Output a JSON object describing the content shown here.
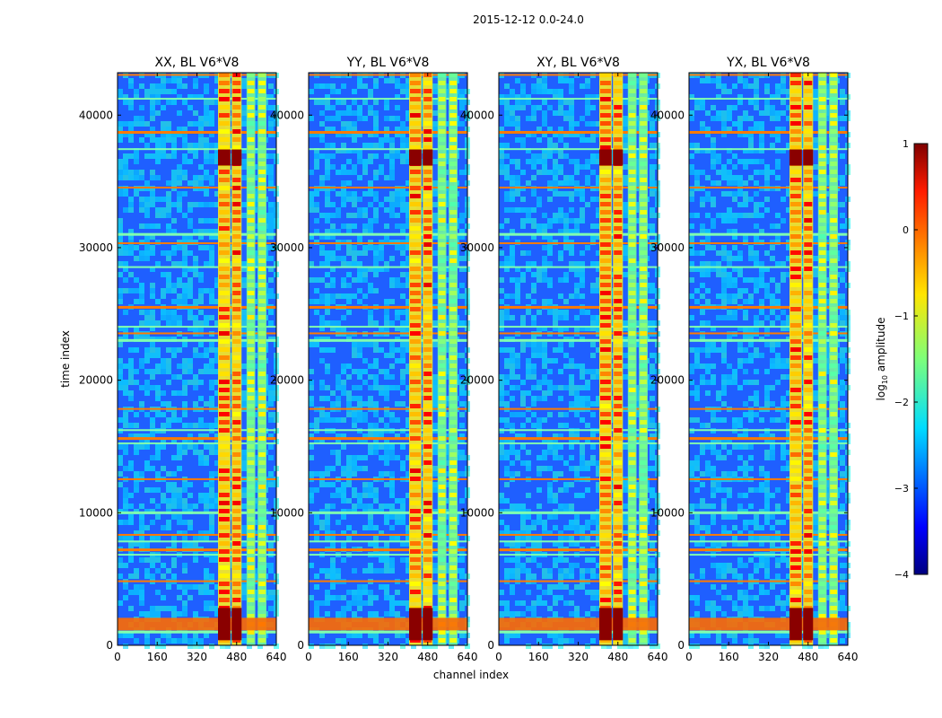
{
  "figure": {
    "suptitle": "2015-12-12 0.0-24.0",
    "xlabel": "channel index",
    "ylabel": "time index",
    "colorbar_label": "log",
    "colorbar_label_sub": "10",
    "colorbar_label_rest": " amplitude",
    "colormap": "jet"
  },
  "chart_data": [
    {
      "type": "heatmap",
      "title": "XX, BL V6*V8",
      "xlabel": "channel index",
      "ylabel": "time index",
      "xlim": [
        0,
        640
      ],
      "ylim": [
        0,
        43200
      ],
      "xticks": [
        0,
        160,
        320,
        480,
        640
      ],
      "yticks": [
        0,
        10000,
        20000,
        30000,
        40000
      ],
      "rfi_channel_bands": [
        [
          405,
          455
        ],
        [
          460,
          500
        ],
        [
          520,
          555
        ],
        [
          565,
          600
        ]
      ],
      "flag_rows": [
        1000,
        4800,
        6800,
        7200,
        7800,
        8300,
        10000,
        12500,
        15200,
        15600,
        16200,
        17800,
        23000,
        23500,
        24000,
        25500,
        28500,
        30300,
        31000,
        34500,
        37400,
        38700,
        41200,
        43000
      ],
      "burst_time": 1600
    },
    {
      "type": "heatmap",
      "title": "YY, BL V6*V8",
      "xlabel": "channel index",
      "ylabel": "time index",
      "xlim": [
        0,
        640
      ],
      "ylim": [
        0,
        43200
      ],
      "xticks": [
        0,
        160,
        320,
        480,
        640
      ],
      "yticks": [
        0,
        10000,
        20000,
        30000,
        40000
      ],
      "rfi_channel_bands": [
        [
          405,
          455
        ],
        [
          460,
          500
        ],
        [
          520,
          555
        ],
        [
          565,
          600
        ]
      ],
      "flag_rows": [
        1000,
        4800,
        6800,
        7200,
        7800,
        8300,
        10000,
        12500,
        15200,
        15600,
        16200,
        17800,
        23000,
        23500,
        24000,
        25500,
        28500,
        30300,
        31000,
        34500,
        37400,
        38700,
        41200,
        43000
      ],
      "burst_time": 1600
    },
    {
      "type": "heatmap",
      "title": "XY, BL V6*V8",
      "xlabel": "channel index",
      "ylabel": "time index",
      "xlim": [
        0,
        640
      ],
      "ylim": [
        0,
        43200
      ],
      "xticks": [
        0,
        160,
        320,
        480,
        640
      ],
      "yticks": [
        0,
        10000,
        20000,
        30000,
        40000
      ],
      "rfi_channel_bands": [
        [
          405,
          455
        ],
        [
          460,
          500
        ],
        [
          520,
          555
        ],
        [
          565,
          600
        ]
      ],
      "flag_rows": [
        1000,
        4800,
        6800,
        7200,
        7800,
        8300,
        10000,
        12500,
        15200,
        15600,
        16200,
        17800,
        23000,
        23500,
        24000,
        25500,
        28500,
        30300,
        31000,
        34500,
        37400,
        38700,
        41200,
        43000
      ],
      "burst_time": 1600
    },
    {
      "type": "heatmap",
      "title": "YX, BL V6*V8",
      "xlabel": "channel index",
      "ylabel": "time index",
      "xlim": [
        0,
        640
      ],
      "ylim": [
        0,
        43200
      ],
      "xticks": [
        0,
        160,
        320,
        480,
        640
      ],
      "yticks": [
        0,
        10000,
        20000,
        30000,
        40000
      ],
      "rfi_channel_bands": [
        [
          405,
          455
        ],
        [
          460,
          500
        ],
        [
          520,
          555
        ],
        [
          565,
          600
        ]
      ],
      "flag_rows": [
        1000,
        4800,
        6800,
        7200,
        7800,
        8300,
        10000,
        12500,
        15200,
        15600,
        16200,
        17800,
        23000,
        23500,
        24000,
        25500,
        28500,
        30300,
        31000,
        34500,
        37400,
        38700,
        41200,
        43000
      ],
      "burst_time": 1600
    }
  ],
  "colorbar": {
    "range": [
      -4,
      1
    ],
    "ticks": [
      "1",
      "0",
      "−1",
      "−2",
      "−3",
      "−4"
    ],
    "tick_values": [
      1,
      0,
      -1,
      -2,
      -3,
      -4
    ]
  }
}
